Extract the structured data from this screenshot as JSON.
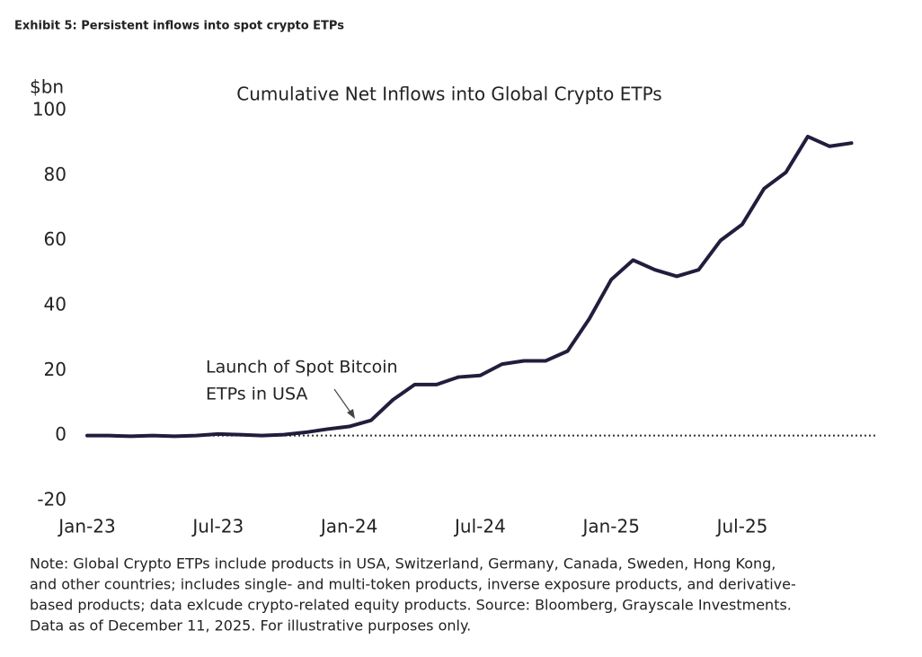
{
  "header": "Exhibit 5: Persistent inflows into spot crypto ETPs",
  "chart_data": {
    "type": "line",
    "title": "Cumulative Net Inflows into Global Crypto ETPs",
    "y_label": "$bn",
    "categories": [
      "Jan-23",
      null,
      null,
      null,
      null,
      null,
      "Jul-23",
      null,
      null,
      null,
      null,
      null,
      "Jan-24",
      null,
      null,
      null,
      null,
      null,
      "Jul-24",
      null,
      null,
      null,
      null,
      null,
      "Jan-25",
      null,
      null,
      null,
      null,
      null,
      "Jul-25",
      null,
      null,
      null,
      null,
      null
    ],
    "series": [
      {
        "name": "Cumulative Net Inflows",
        "color": "#241c3d",
        "values": [
          0,
          0,
          -0.2,
          0,
          -0.2,
          0,
          0.5,
          0.3,
          0,
          0.3,
          1,
          2,
          2.8,
          4.7,
          11,
          15.7,
          15.7,
          18,
          18.5,
          22,
          23,
          23,
          26,
          36,
          48,
          54,
          51,
          49,
          51,
          60,
          65,
          76,
          81,
          92,
          89,
          90
        ]
      }
    ],
    "ylim": [
      -20,
      100
    ],
    "yticks": [
      -20,
      0,
      20,
      40,
      60,
      80,
      100
    ],
    "annotation": [
      "Launch of Spot Bitcoin",
      "ETPs in USA"
    ],
    "note": [
      "Note: Global Crypto ETPs include products in USA, Switzerland, Germany, Canada, Sweden, Hong Kong,",
      "and other countries; includes single- and multi-token products, inverse exposure products, and derivative-",
      "based products; data exlcude crypto-related equity products. Source: Bloomberg, Grayscale Investments.",
      "Data as of December 11, 2025. For illustrative purposes only."
    ]
  }
}
